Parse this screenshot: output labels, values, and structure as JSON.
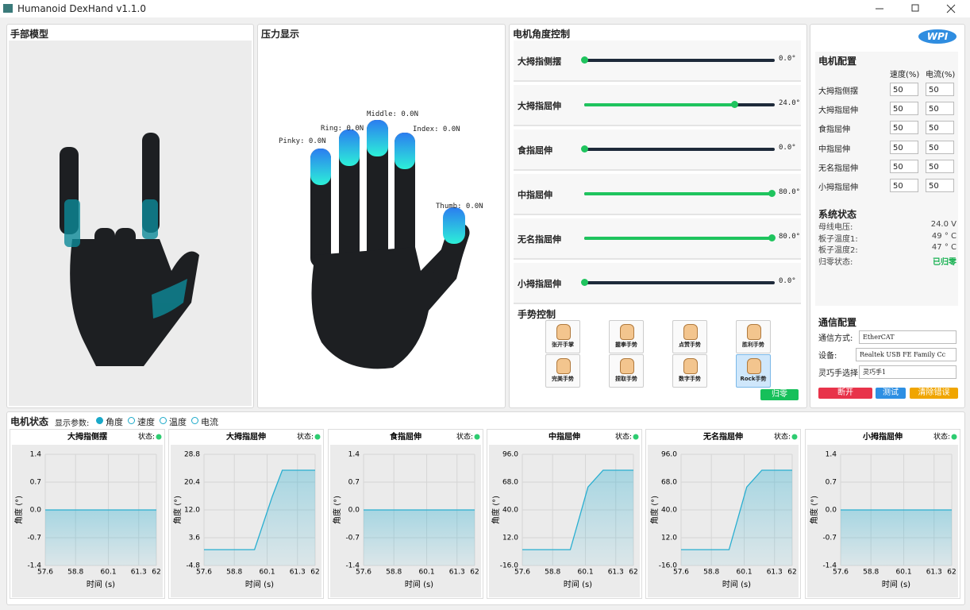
{
  "window": {
    "title": "Humanoid DexHand v1.1.0"
  },
  "hand_model": {
    "title": "手部模型"
  },
  "pressure": {
    "title": "压力显示",
    "labels": [
      "Pinky: 0.0N",
      "Ring: 0.0N",
      "Middle: 0.0N",
      "Index: 0.0N",
      "Thumb: 0.0N"
    ]
  },
  "motor_control": {
    "title": "电机角度控制",
    "sliders": [
      {
        "label": "大拇指侧摆",
        "value": "0.0°"
      },
      {
        "label": "大拇指屈伸",
        "value": "24.0°"
      },
      {
        "label": "食指屈伸",
        "value": "0.0°"
      },
      {
        "label": "中指屈伸",
        "value": "80.0°"
      },
      {
        "label": "无名指屈伸",
        "value": "80.0°"
      },
      {
        "label": "小拇指屈伸",
        "value": "0.0°"
      }
    ],
    "gesture_title": "手势控制",
    "gestures": [
      "张开手掌",
      "握拳手势",
      "点赞手势",
      "胜利手势",
      "完美手势",
      "捏取手势",
      "数字手势",
      "Rock手势"
    ],
    "zero_button": "归零"
  },
  "config": {
    "logo": "WPI",
    "title": "电机配置",
    "headers": [
      "速度(%)",
      "电流(%)"
    ],
    "rows": [
      {
        "name": "大拇指侧摆",
        "speed": 50,
        "current": 50
      },
      {
        "name": "大拇指屈伸",
        "speed": 50,
        "current": 50
      },
      {
        "name": "食指屈伸",
        "speed": 50,
        "current": 50
      },
      {
        "name": "中指屈伸",
        "speed": 50,
        "current": 50
      },
      {
        "name": "无名指屈伸",
        "speed": 50,
        "current": 50
      },
      {
        "name": "小拇指屈伸",
        "speed": 50,
        "current": 50
      }
    ]
  },
  "system": {
    "title": "系统状态",
    "rows": [
      [
        "母线电压:",
        "24.0 V"
      ],
      [
        "板子温度1:",
        "49 ° C"
      ],
      [
        "板子温度2:",
        "47 ° C"
      ],
      [
        "归零状态:",
        "已归零"
      ]
    ]
  },
  "comm": {
    "title": "通信配置",
    "rows": [
      [
        "通信方式:",
        "EtherCAT"
      ],
      [
        "设备:",
        "Realtek USB FE Family Cc"
      ],
      [
        "灵巧手选择:",
        "灵巧手1"
      ]
    ],
    "buttons": [
      "断开",
      "测试",
      "清除错误"
    ]
  },
  "motor_status": {
    "title": "电机状态",
    "display_label": "显示参数:",
    "options": [
      "角度",
      "速度",
      "温度",
      "电流"
    ]
  },
  "chart_data": [
    {
      "type": "line",
      "title": "大拇指侧摆",
      "status_label": "状态:",
      "x_label": "时间 (s)",
      "y_label": "角度 (°)",
      "color": "#29aed0",
      "x": [
        57.6,
        62
      ],
      "values": [
        0,
        0
      ],
      "xlim": [
        57.6,
        62
      ],
      "ylim": [
        -1.4,
        1.4
      ],
      "xticks": [
        57.6,
        58.8,
        60.1,
        61.3,
        62
      ],
      "yticks": [
        -1.4,
        -0.7,
        {
          "value": 0,
          "label": "0.0"
        },
        0.7,
        1.4
      ]
    },
    {
      "type": "line",
      "title": "大拇指屈伸",
      "status_label": "状态:",
      "x_label": "时间 (s)",
      "y_label": "角度 (°)",
      "color": "#29aed0",
      "x": [
        57.6,
        59.6,
        60.3,
        60.7,
        62
      ],
      "values": [
        0,
        0,
        16,
        24,
        24
      ],
      "xlim": [
        57.6,
        62
      ],
      "ylim": [
        -4.8,
        28.8
      ],
      "xticks": [
        57.6,
        58.8,
        60.1,
        61.3,
        62
      ],
      "yticks": [
        -4.8,
        3.6,
        {
          "value": 12,
          "label": "12.0"
        },
        20.4,
        28.8
      ]
    },
    {
      "type": "line",
      "title": "食指屈伸",
      "status_label": "状态:",
      "x_label": "时间 (s)",
      "y_label": "角度 (°)",
      "color": "#29aed0",
      "x": [
        57.6,
        62
      ],
      "values": [
        0,
        0
      ],
      "xlim": [
        57.6,
        62
      ],
      "ylim": [
        -1.4,
        1.4
      ],
      "xticks": [
        57.6,
        58.8,
        60.1,
        61.3,
        62
      ],
      "yticks": [
        -1.4,
        -0.7,
        {
          "value": 0,
          "label": "0.0"
        },
        0.7,
        1.4
      ]
    },
    {
      "type": "line",
      "title": "中指屈伸",
      "status_label": "状态:",
      "x_label": "时间 (s)",
      "y_label": "角度 (°)",
      "color": "#29aed0",
      "x": [
        57.6,
        59.5,
        60.2,
        60.8,
        62
      ],
      "values": [
        0,
        0,
        63,
        80,
        80
      ],
      "xlim": [
        57.6,
        62
      ],
      "ylim": [
        -16,
        96
      ],
      "xticks": [
        57.6,
        58.8,
        60.1,
        61.3,
        62
      ],
      "yticks": [
        {
          "value": -16,
          "label": "-16.0"
        },
        {
          "value": 12,
          "label": "12.0"
        },
        {
          "value": 40,
          "label": "40.0"
        },
        {
          "value": 68,
          "label": "68.0"
        },
        {
          "value": 96,
          "label": "96.0"
        }
      ]
    },
    {
      "type": "line",
      "title": "无名指屈伸",
      "status_label": "状态:",
      "x_label": "时间 (s)",
      "y_label": "角度 (°)",
      "color": "#29aed0",
      "x": [
        57.6,
        59.5,
        60.2,
        60.8,
        62
      ],
      "values": [
        0,
        0,
        63,
        80,
        80
      ],
      "xlim": [
        57.6,
        62
      ],
      "ylim": [
        -16,
        96
      ],
      "xticks": [
        57.6,
        58.8,
        60.1,
        61.3,
        62
      ],
      "yticks": [
        {
          "value": -16,
          "label": "-16.0"
        },
        {
          "value": 12,
          "label": "12.0"
        },
        {
          "value": 40,
          "label": "40.0"
        },
        {
          "value": 68,
          "label": "68.0"
        },
        {
          "value": 96,
          "label": "96.0"
        }
      ]
    },
    {
      "type": "line",
      "title": "小拇指屈伸",
      "status_label": "状态:",
      "x_label": "时间 (s)",
      "y_label": "角度 (°)",
      "color": "#29aed0",
      "x": [
        57.6,
        62
      ],
      "values": [
        0,
        0
      ],
      "xlim": [
        57.6,
        62
      ],
      "ylim": [
        -1.4,
        1.4
      ],
      "xticks": [
        57.6,
        58.8,
        60.1,
        61.3,
        62
      ],
      "yticks": [
        -1.4,
        -0.7,
        {
          "value": 0,
          "label": "0.0"
        },
        0.7,
        1.4
      ]
    }
  ]
}
